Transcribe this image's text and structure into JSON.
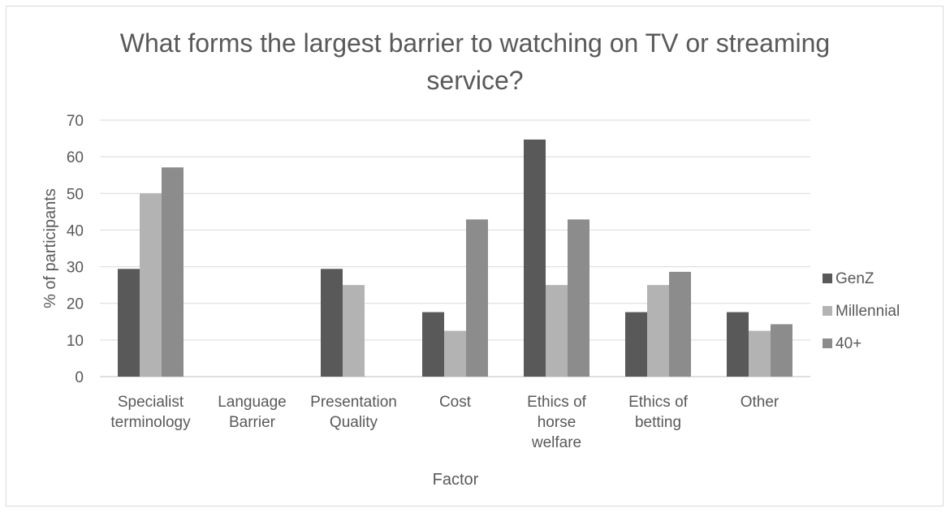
{
  "chart_data": {
    "type": "bar",
    "title_lines": [
      "What forms the largest barrier to watching on TV or streaming",
      "service?"
    ],
    "xlabel": "Factor",
    "ylabel": "% of participants",
    "ylim": [
      0,
      70
    ],
    "yticks": [
      0,
      10,
      20,
      30,
      40,
      50,
      60,
      70
    ],
    "grid": true,
    "legend_position": "right",
    "categories": [
      [
        "Specialist",
        "terminology"
      ],
      [
        "Language",
        "Barrier"
      ],
      [
        "Presentation",
        "Quality"
      ],
      [
        "Cost"
      ],
      [
        "Ethics of",
        "horse",
        "welfare"
      ],
      [
        "Ethics of",
        "betting"
      ],
      [
        "Other"
      ]
    ],
    "series": [
      {
        "name": "GenZ",
        "color": "#595959",
        "values": [
          29.4,
          0,
          29.4,
          17.6,
          64.7,
          17.6,
          17.6
        ]
      },
      {
        "name": "Millennial",
        "color": "#b3b3b3",
        "values": [
          50,
          0,
          25,
          12.5,
          25,
          25,
          12.5
        ]
      },
      {
        "name": "40+",
        "color": "#8c8c8c",
        "values": [
          57.1,
          0,
          0,
          42.9,
          42.9,
          28.6,
          14.3
        ]
      }
    ]
  }
}
